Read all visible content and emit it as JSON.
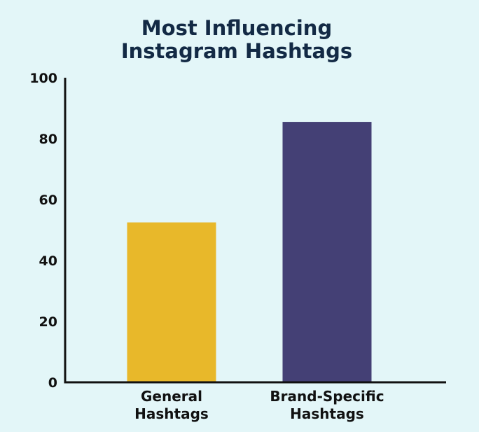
{
  "chart_data": {
    "type": "bar",
    "title_lines": [
      "Most Influencing",
      "Instagram Hashtags"
    ],
    "categories": [
      {
        "lines": [
          "General",
          "Hashtags"
        ]
      },
      {
        "lines": [
          "Brand-Specific",
          "Hashtags"
        ]
      }
    ],
    "values": [
      52.5,
      85.5
    ],
    "bar_colors": [
      "#E8B82A",
      "#444075"
    ],
    "ylim": [
      0,
      100
    ],
    "yticks": [
      "0",
      "20",
      "40",
      "60",
      "80",
      "100"
    ],
    "ytick_values": [
      0,
      20,
      40,
      60,
      80,
      100
    ],
    "grid": false,
    "legend": "none",
    "axis_color": "#111111"
  }
}
